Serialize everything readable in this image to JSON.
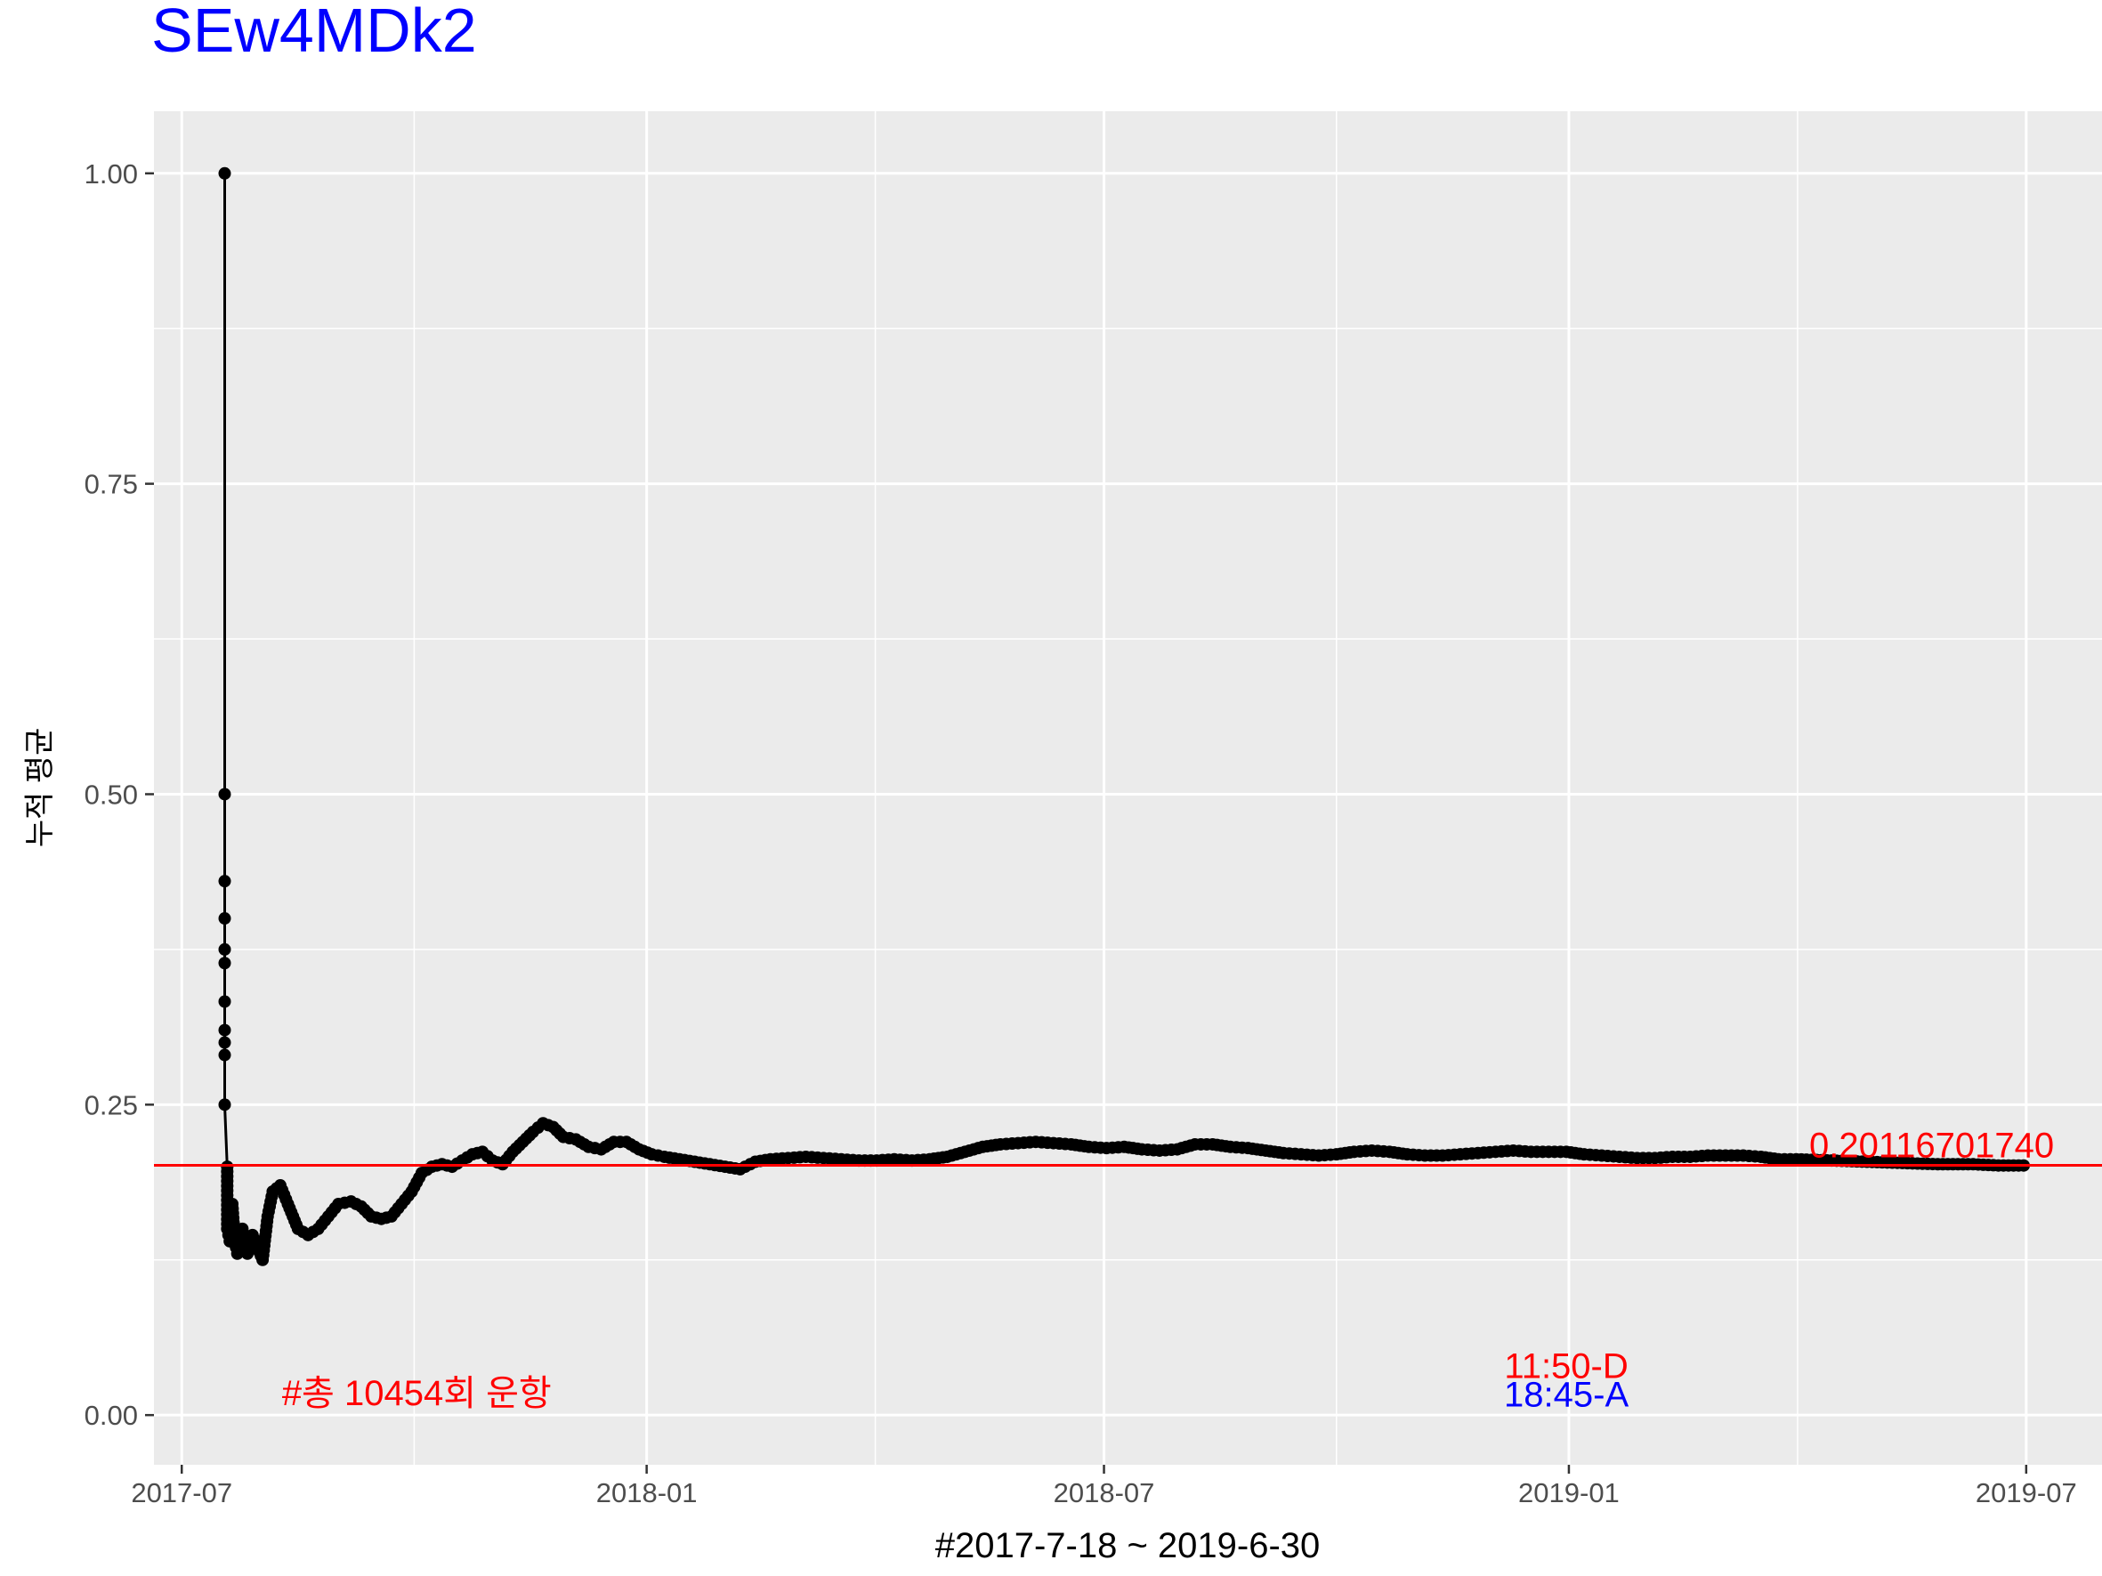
{
  "chart_data": {
    "type": "line",
    "title": "SEw4MDk2",
    "title_color": "#0000FF",
    "xlabel": "#2017-7-18 ~ 2019-6-30",
    "ylabel": "누적 평균",
    "x_ticks": [
      "2017-07",
      "2018-01",
      "2018-07",
      "2019-01",
      "2019-07"
    ],
    "y_ticks": [
      "0.00",
      "0.25",
      "0.50",
      "0.75",
      "1.00"
    ],
    "xlim": [
      "2017-06-20",
      "2019-07-31"
    ],
    "ylim": [
      -0.04,
      1.05
    ],
    "grid": true,
    "panel_background": "#EBEBEB",
    "line_color": "#000000",
    "series": [
      {
        "points": [
          [
            "2017-07-18",
            1.0
          ],
          [
            "2017-07-18",
            0.5
          ],
          [
            "2017-07-18",
            0.43
          ],
          [
            "2017-07-18",
            0.4
          ],
          [
            "2017-07-18",
            0.375
          ],
          [
            "2017-07-18",
            0.364
          ],
          [
            "2017-07-18",
            0.333
          ],
          [
            "2017-07-18",
            0.31
          ],
          [
            "2017-07-18",
            0.3
          ],
          [
            "2017-07-18",
            0.29
          ],
          [
            "2017-07-18",
            0.25
          ],
          [
            "2017-07-19",
            0.2
          ],
          [
            "2017-07-19",
            0.15
          ],
          [
            "2017-07-20",
            0.14
          ],
          [
            "2017-07-21",
            0.17
          ],
          [
            "2017-07-22",
            0.14
          ],
          [
            "2017-07-23",
            0.13
          ],
          [
            "2017-07-25",
            0.15
          ],
          [
            "2017-07-27",
            0.13
          ],
          [
            "2017-07-29",
            0.145
          ],
          [
            "2017-07-31",
            0.135
          ],
          [
            "2017-08-02",
            0.125
          ],
          [
            "2017-08-04",
            0.16
          ],
          [
            "2017-08-06",
            0.18
          ],
          [
            "2017-08-09",
            0.185
          ],
          [
            "2017-08-12",
            0.17
          ],
          [
            "2017-08-16",
            0.15
          ],
          [
            "2017-08-20",
            0.145
          ],
          [
            "2017-08-24",
            0.15
          ],
          [
            "2017-08-28",
            0.16
          ],
          [
            "2017-09-01",
            0.17
          ],
          [
            "2017-09-06",
            0.172
          ],
          [
            "2017-09-10",
            0.168
          ],
          [
            "2017-09-14",
            0.16
          ],
          [
            "2017-09-18",
            0.158
          ],
          [
            "2017-09-22",
            0.16
          ],
          [
            "2017-09-26",
            0.17
          ],
          [
            "2017-09-30",
            0.18
          ],
          [
            "2017-10-04",
            0.195
          ],
          [
            "2017-10-08",
            0.2
          ],
          [
            "2017-10-12",
            0.202
          ],
          [
            "2017-10-16",
            0.2
          ],
          [
            "2017-10-20",
            0.205
          ],
          [
            "2017-10-24",
            0.21
          ],
          [
            "2017-10-28",
            0.212
          ],
          [
            "2017-11-01",
            0.205
          ],
          [
            "2017-11-05",
            0.202
          ],
          [
            "2017-11-09",
            0.212
          ],
          [
            "2017-11-13",
            0.22
          ],
          [
            "2017-11-17",
            0.228
          ],
          [
            "2017-11-21",
            0.235
          ],
          [
            "2017-11-25",
            0.232
          ],
          [
            "2017-11-29",
            0.224
          ],
          [
            "2017-12-04",
            0.222
          ],
          [
            "2017-12-09",
            0.216
          ],
          [
            "2017-12-14",
            0.214
          ],
          [
            "2017-12-19",
            0.22
          ],
          [
            "2017-12-24",
            0.22
          ],
          [
            "2017-12-29",
            0.214
          ],
          [
            "2018-01-03",
            0.21
          ],
          [
            "2018-01-08",
            0.208
          ],
          [
            "2018-01-14",
            0.206
          ],
          [
            "2018-01-20",
            0.204
          ],
          [
            "2018-01-26",
            0.202
          ],
          [
            "2018-02-01",
            0.2
          ],
          [
            "2018-02-07",
            0.198
          ],
          [
            "2018-02-13",
            0.204
          ],
          [
            "2018-02-19",
            0.206
          ],
          [
            "2018-02-26",
            0.207
          ],
          [
            "2018-03-05",
            0.208
          ],
          [
            "2018-03-12",
            0.207
          ],
          [
            "2018-03-19",
            0.206
          ],
          [
            "2018-03-26",
            0.205
          ],
          [
            "2018-04-02",
            0.205
          ],
          [
            "2018-04-09",
            0.206
          ],
          [
            "2018-04-16",
            0.205
          ],
          [
            "2018-04-23",
            0.206
          ],
          [
            "2018-04-30",
            0.208
          ],
          [
            "2018-05-07",
            0.212
          ],
          [
            "2018-05-14",
            0.216
          ],
          [
            "2018-05-21",
            0.218
          ],
          [
            "2018-05-28",
            0.219
          ],
          [
            "2018-06-04",
            0.22
          ],
          [
            "2018-06-11",
            0.219
          ],
          [
            "2018-06-18",
            0.218
          ],
          [
            "2018-06-25",
            0.216
          ],
          [
            "2018-07-02",
            0.215
          ],
          [
            "2018-07-09",
            0.216
          ],
          [
            "2018-07-16",
            0.214
          ],
          [
            "2018-07-23",
            0.213
          ],
          [
            "2018-07-30",
            0.214
          ],
          [
            "2018-08-06",
            0.218
          ],
          [
            "2018-08-13",
            0.218
          ],
          [
            "2018-08-20",
            0.216
          ],
          [
            "2018-08-27",
            0.215
          ],
          [
            "2018-09-03",
            0.213
          ],
          [
            "2018-09-10",
            0.211
          ],
          [
            "2018-09-17",
            0.21
          ],
          [
            "2018-09-24",
            0.209
          ],
          [
            "2018-10-01",
            0.21
          ],
          [
            "2018-10-08",
            0.212
          ],
          [
            "2018-10-15",
            0.213
          ],
          [
            "2018-10-22",
            0.212
          ],
          [
            "2018-10-29",
            0.21
          ],
          [
            "2018-11-05",
            0.209
          ],
          [
            "2018-11-12",
            0.209
          ],
          [
            "2018-11-19",
            0.21
          ],
          [
            "2018-11-26",
            0.211
          ],
          [
            "2018-12-03",
            0.212
          ],
          [
            "2018-12-10",
            0.213
          ],
          [
            "2018-12-17",
            0.212
          ],
          [
            "2018-12-24",
            0.212
          ],
          [
            "2018-12-31",
            0.212
          ],
          [
            "2019-01-07",
            0.21
          ],
          [
            "2019-01-14",
            0.209
          ],
          [
            "2019-01-21",
            0.208
          ],
          [
            "2019-01-28",
            0.207
          ],
          [
            "2019-02-04",
            0.207
          ],
          [
            "2019-02-11",
            0.208
          ],
          [
            "2019-02-18",
            0.208
          ],
          [
            "2019-02-25",
            0.209
          ],
          [
            "2019-03-04",
            0.209
          ],
          [
            "2019-03-11",
            0.209
          ],
          [
            "2019-03-18",
            0.208
          ],
          [
            "2019-03-25",
            0.206
          ],
          [
            "2019-04-01",
            0.206
          ],
          [
            "2019-04-15",
            0.205
          ],
          [
            "2019-04-29",
            0.204
          ],
          [
            "2019-05-13",
            0.203
          ],
          [
            "2019-05-27",
            0.202
          ],
          [
            "2019-06-10",
            0.202
          ],
          [
            "2019-06-20",
            0.201
          ],
          [
            "2019-06-30",
            0.201
          ]
        ]
      }
    ],
    "hline": {
      "value": 0.2011670174,
      "color": "#FF0000",
      "label": "0.20116701740"
    },
    "annotations": [
      {
        "text": "#총 10454회 운항",
        "x": "2017-10-02",
        "y": 0.018,
        "color": "#FF0000"
      },
      {
        "text": "11:50-D",
        "x": "2018-12-31",
        "y": 0.04,
        "color": "#FF0000"
      },
      {
        "text": "18:45-A",
        "x": "2018-12-31",
        "y": 0.017,
        "color": "#0000FF"
      }
    ]
  }
}
